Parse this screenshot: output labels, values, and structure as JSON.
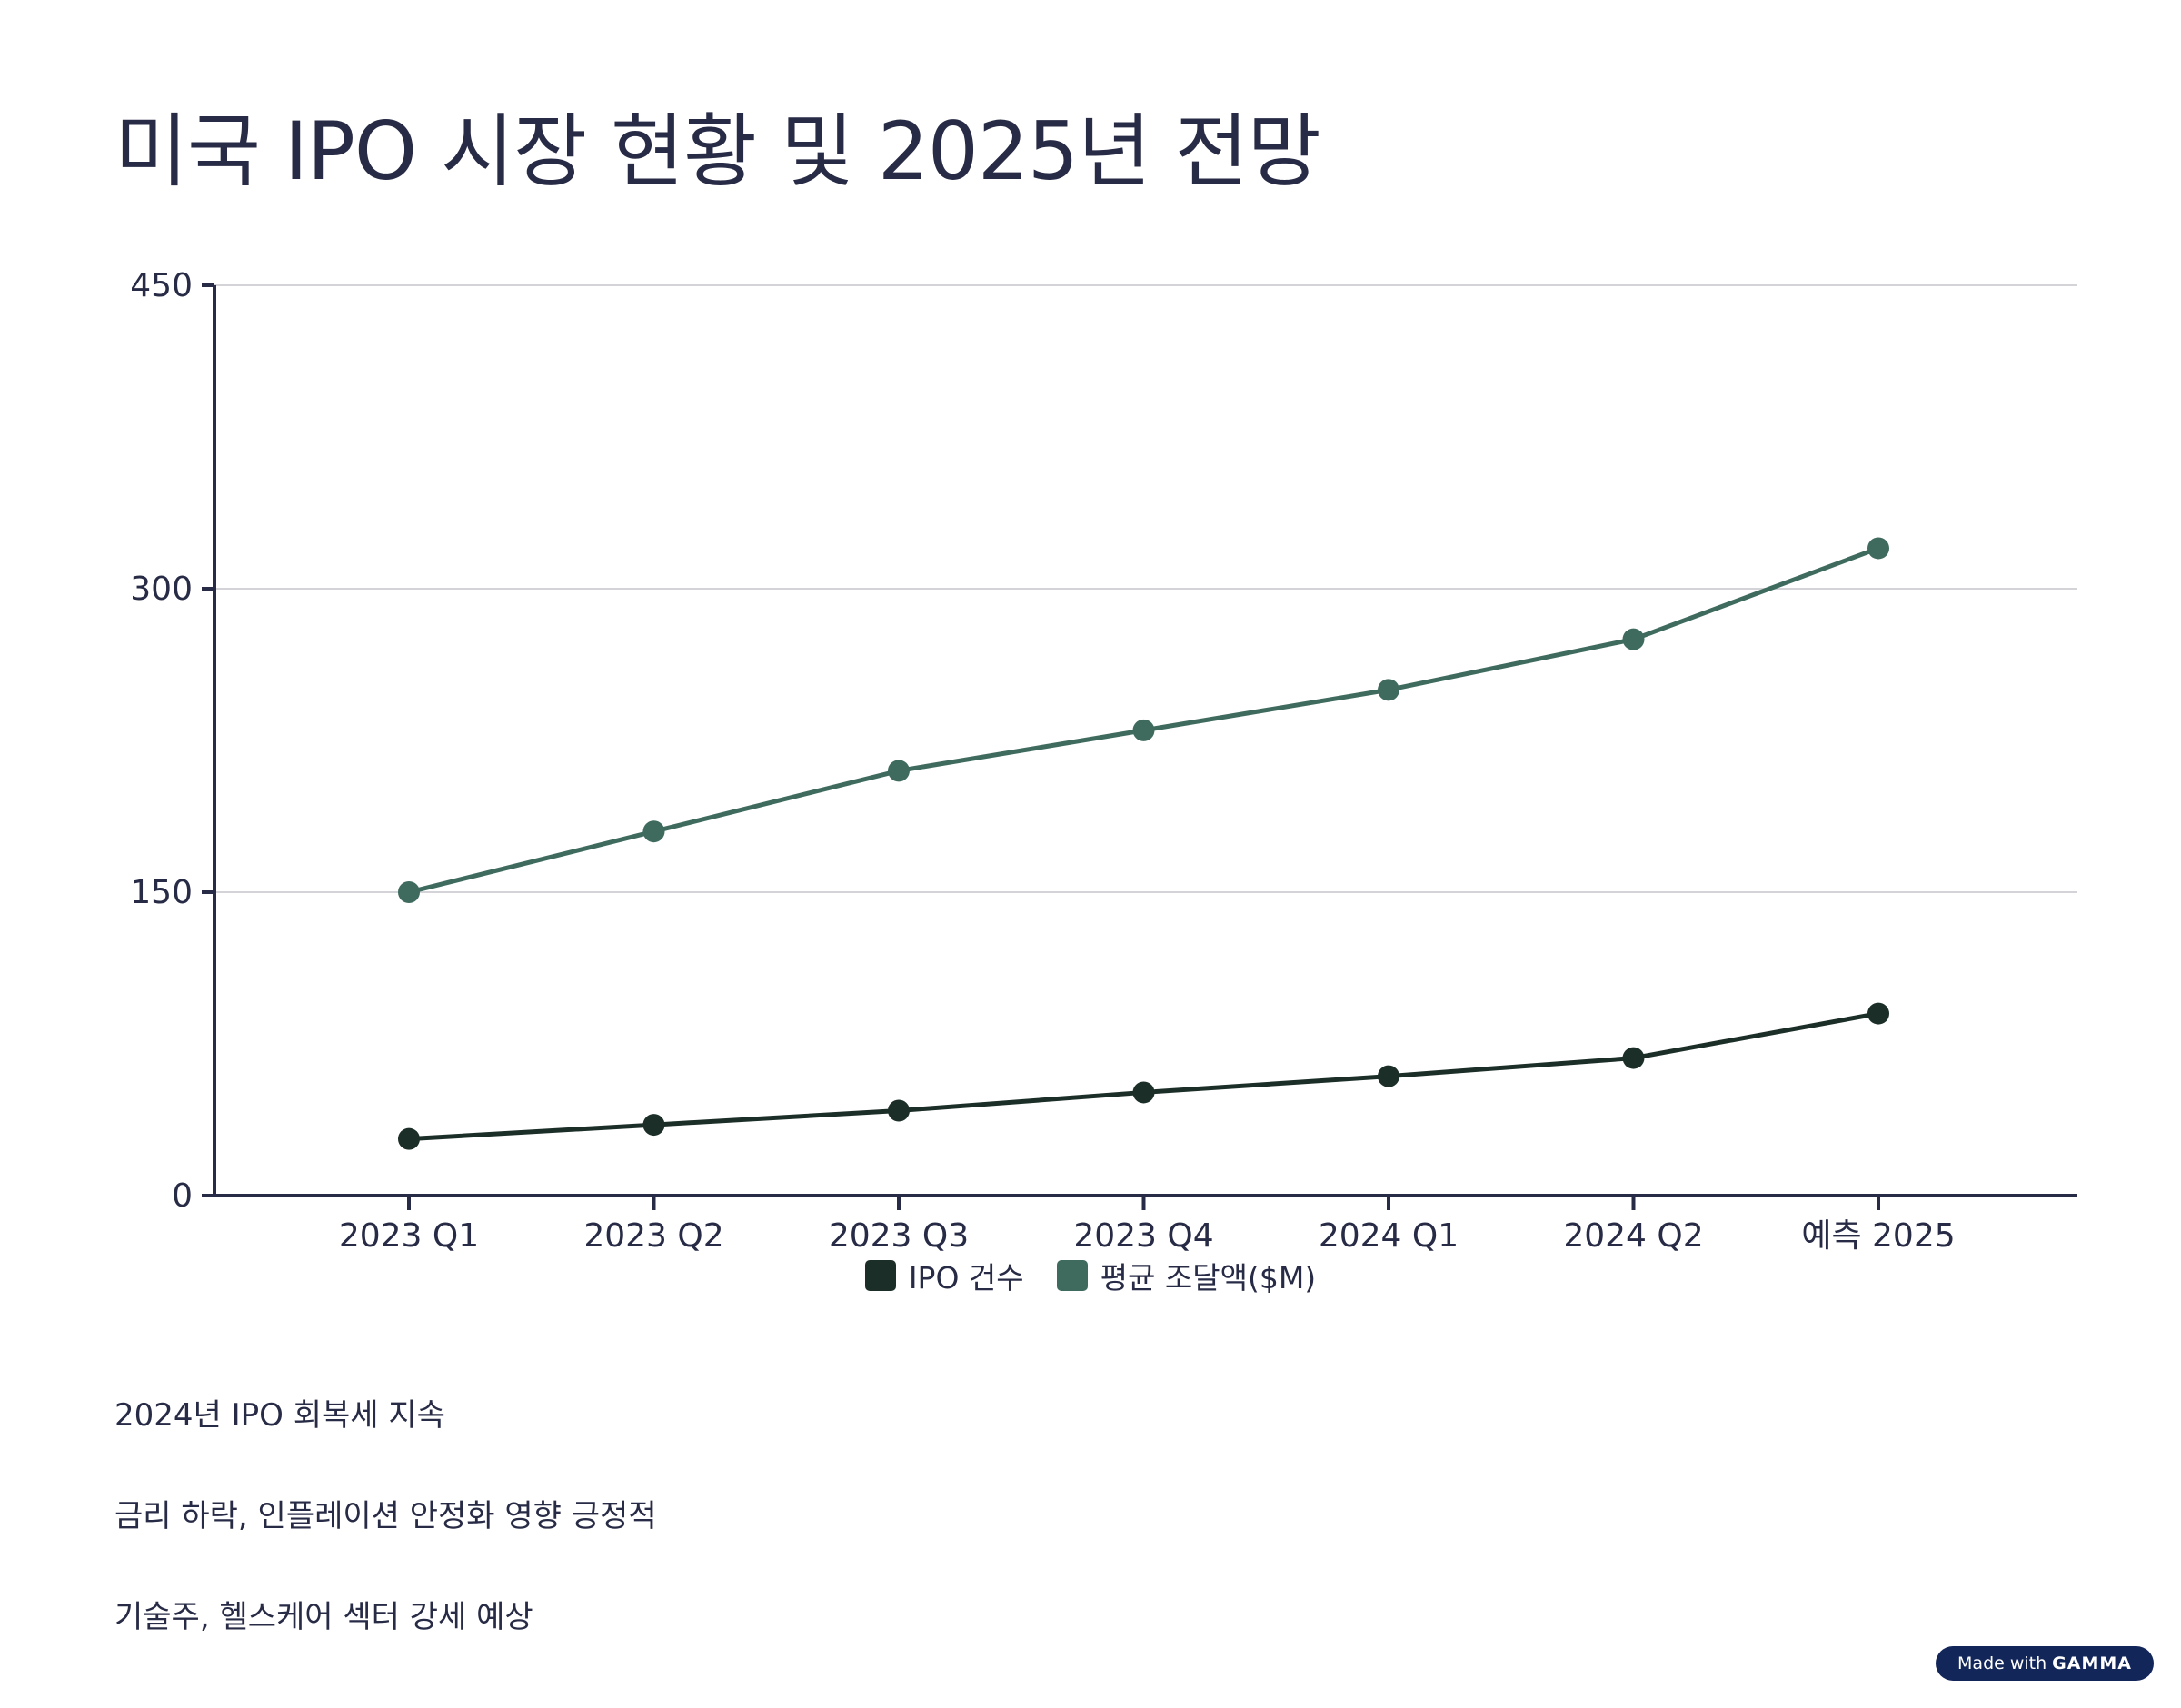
{
  "title": "미국 IPO 시장 현황 및 2025년 전망",
  "chart_data": {
    "type": "line",
    "categories": [
      "2023 Q1",
      "2023 Q2",
      "2023 Q3",
      "2023 Q4",
      "2024 Q1",
      "2024 Q2",
      "예측 2025"
    ],
    "series": [
      {
        "name": "IPO 건수",
        "color": "#1c2e28",
        "values": [
          28,
          35,
          42,
          51,
          59,
          68,
          90
        ]
      },
      {
        "name": "평균 조달액($M)",
        "color": "#3f6b5e",
        "values": [
          150,
          180,
          210,
          230,
          250,
          275,
          320
        ]
      }
    ],
    "yticks": [
      "0",
      "150",
      "300",
      "450"
    ],
    "ylim": [
      0,
      450
    ],
    "grid": true,
    "legend": "bottom"
  },
  "notes": [
    "2024년 IPO 회복세 지속",
    "금리 하락, 인플레이션 안정화 영향 긍정적",
    "기술주, 헬스케어 섹터 강세 예상"
  ],
  "badge": {
    "prefix": "Made with",
    "brand": "GAMMA"
  }
}
